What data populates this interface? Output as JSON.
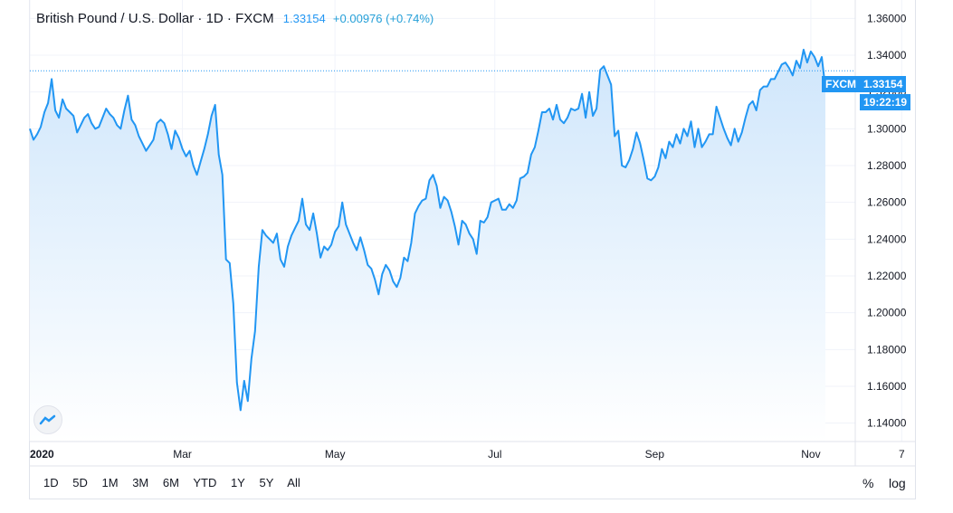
{
  "legend": {
    "symbol": "British Pound / U.S. Dollar · 1D · FXCM",
    "price": "1.33154",
    "change": "+0.00976 (+0.74%)"
  },
  "tags": {
    "source": "FXCM",
    "last_price": "1.33154",
    "time": "19:22:19"
  },
  "range_buttons": [
    "1D",
    "5D",
    "1M",
    "3M",
    "6M",
    "YTD",
    "1Y",
    "5Y",
    "All"
  ],
  "scale_buttons": {
    "percent": "%",
    "log": "log"
  },
  "colors": {
    "line": "#2196f3",
    "area_top": "#cfe6fb",
    "area_bottom": "#ffffff",
    "grid": "#f0f3fa",
    "tag_bg": "#2196f3"
  },
  "chart_data": {
    "type": "area",
    "title": "British Pound / U.S. Dollar · 1D · FXCM",
    "xlabel": "",
    "ylabel": "",
    "ylim": [
      1.13,
      1.37
    ],
    "y_ticks": [
      "1.36000",
      "1.34000",
      "1.32000",
      "1.30000",
      "1.28000",
      "1.26000",
      "1.24000",
      "1.22000",
      "1.20000",
      "1.18000",
      "1.16000",
      "1.14000"
    ],
    "x_ticks": [
      {
        "label": "2020",
        "i": 0
      },
      {
        "label": "Mar",
        "i": 42
      },
      {
        "label": "May",
        "i": 84
      },
      {
        "label": "Jul",
        "i": 128
      },
      {
        "label": "Sep",
        "i": 172
      },
      {
        "label": "Nov",
        "i": 215
      },
      {
        "label": "7",
        "i": 240
      }
    ],
    "last_value": 1.33154,
    "values": [
      1.3,
      1.294,
      1.297,
      1.301,
      1.309,
      1.314,
      1.327,
      1.31,
      1.306,
      1.316,
      1.311,
      1.309,
      1.307,
      1.298,
      1.302,
      1.306,
      1.308,
      1.303,
      1.3,
      1.301,
      1.306,
      1.311,
      1.308,
      1.306,
      1.302,
      1.3,
      1.31,
      1.318,
      1.305,
      1.302,
      1.296,
      1.292,
      1.288,
      1.291,
      1.294,
      1.303,
      1.305,
      1.303,
      1.297,
      1.289,
      1.299,
      1.295,
      1.289,
      1.285,
      1.288,
      1.28,
      1.275,
      1.282,
      1.289,
      1.297,
      1.307,
      1.313,
      1.286,
      1.275,
      1.229,
      1.227,
      1.205,
      1.162,
      1.147,
      1.163,
      1.152,
      1.175,
      1.19,
      1.225,
      1.245,
      1.242,
      1.24,
      1.238,
      1.243,
      1.229,
      1.225,
      1.236,
      1.242,
      1.246,
      1.25,
      1.262,
      1.248,
      1.245,
      1.254,
      1.243,
      1.23,
      1.236,
      1.234,
      1.237,
      1.244,
      1.247,
      1.26,
      1.248,
      1.243,
      1.238,
      1.234,
      1.241,
      1.234,
      1.226,
      1.224,
      1.218,
      1.21,
      1.221,
      1.226,
      1.223,
      1.217,
      1.214,
      1.219,
      1.23,
      1.228,
      1.238,
      1.254,
      1.258,
      1.261,
      1.262,
      1.272,
      1.275,
      1.269,
      1.257,
      1.263,
      1.261,
      1.255,
      1.247,
      1.237,
      1.25,
      1.248,
      1.243,
      1.24,
      1.232,
      1.25,
      1.249,
      1.252,
      1.26,
      1.261,
      1.262,
      1.256,
      1.256,
      1.259,
      1.257,
      1.261,
      1.273,
      1.274,
      1.276,
      1.286,
      1.29,
      1.299,
      1.309,
      1.309,
      1.311,
      1.305,
      1.313,
      1.305,
      1.303,
      1.306,
      1.311,
      1.31,
      1.311,
      1.319,
      1.306,
      1.32,
      1.307,
      1.311,
      1.332,
      1.334,
      1.329,
      1.324,
      1.296,
      1.299,
      1.28,
      1.279,
      1.283,
      1.289,
      1.298,
      1.292,
      1.283,
      1.273,
      1.272,
      1.274,
      1.279,
      1.289,
      1.284,
      1.293,
      1.29,
      1.297,
      1.292,
      1.3,
      1.296,
      1.304,
      1.29,
      1.3,
      1.29,
      1.293,
      1.297,
      1.297,
      1.312,
      1.306,
      1.3,
      1.295,
      1.291,
      1.3,
      1.293,
      1.298,
      1.306,
      1.313,
      1.315,
      1.31,
      1.321,
      1.323,
      1.323,
      1.327,
      1.327,
      1.331,
      1.335,
      1.336,
      1.333,
      1.329,
      1.337,
      1.333,
      1.343,
      1.336,
      1.342,
      1.339,
      1.334,
      1.339,
      1.322
    ]
  }
}
